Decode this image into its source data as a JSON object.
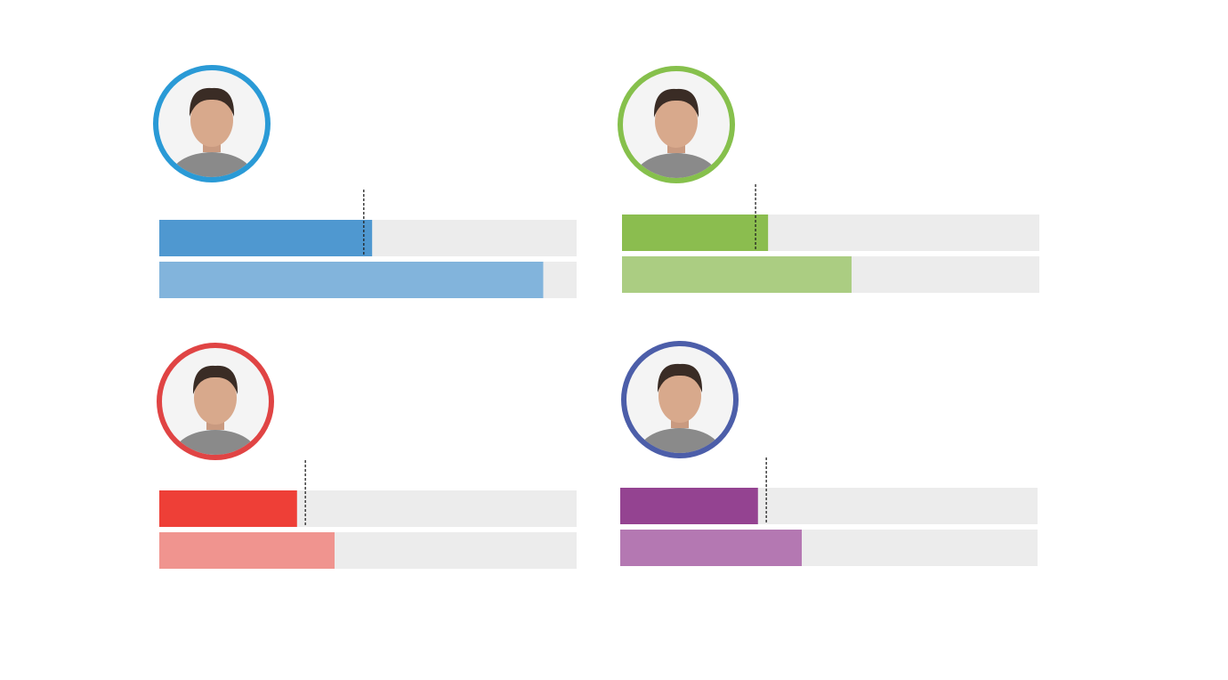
{
  "chart_data": [
    {
      "type": "bar",
      "orientation": "horizontal",
      "categories": [
        null,
        null
      ],
      "values": [
        51,
        92
      ],
      "marker": 49,
      "colors": [
        "#4f98d0",
        "#82b4dc"
      ],
      "ring_color": "#2a9ad6",
      "track_color": "#ececec",
      "xlim": [
        0,
        100
      ]
    },
    {
      "type": "bar",
      "orientation": "horizontal",
      "categories": [
        null,
        null
      ],
      "values": [
        35,
        55
      ],
      "marker": 32,
      "colors": [
        "#8bbd4f",
        "#abcd82"
      ],
      "ring_color": "#86c04c",
      "track_color": "#ececec",
      "xlim": [
        0,
        100
      ]
    },
    {
      "type": "bar",
      "orientation": "horizontal",
      "categories": [
        null,
        null
      ],
      "values": [
        33,
        42
      ],
      "marker": 35,
      "colors": [
        "#ee3f37",
        "#f0948f"
      ],
      "ring_color": "#e04444",
      "track_color": "#ececec",
      "xlim": [
        0,
        100
      ]
    },
    {
      "type": "bar",
      "orientation": "horizontal",
      "categories": [
        null,
        null
      ],
      "values": [
        33,
        43.5
      ],
      "marker": 35,
      "colors": [
        "#944391",
        "#b478b2"
      ],
      "ring_color": "#4c5ea9",
      "track_color": "#ececec",
      "xlim": [
        0,
        100
      ]
    }
  ]
}
